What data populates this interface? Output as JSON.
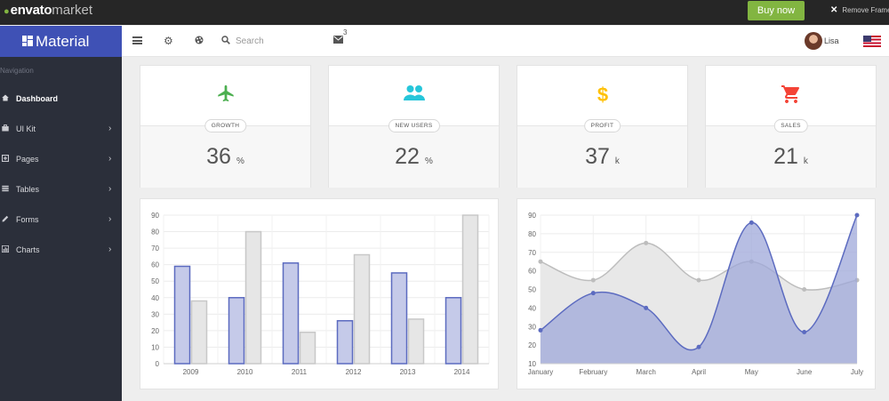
{
  "envato": {
    "logo_brand": "envato",
    "logo_market": "market",
    "buy_button": "Buy now",
    "remove_frame": "Remove Frame"
  },
  "brand": {
    "title": "Material"
  },
  "header": {
    "search_placeholder": "Search",
    "mail_count": "3",
    "user_name": "Lisa"
  },
  "sidebar": {
    "heading": "Navigation",
    "items": [
      {
        "label": "Dashboard",
        "icon": "home-icon",
        "has_children": false,
        "active": true
      },
      {
        "label": "UI Kit",
        "icon": "briefcase-icon",
        "has_children": true
      },
      {
        "label": "Pages",
        "icon": "pages-icon",
        "has_children": true
      },
      {
        "label": "Tables",
        "icon": "table-icon",
        "has_children": true
      },
      {
        "label": "Forms",
        "icon": "pencil-icon",
        "has_children": true
      },
      {
        "label": "Charts",
        "icon": "chart-icon",
        "has_children": true
      }
    ]
  },
  "stats": [
    {
      "label": "GROWTH",
      "value": "36",
      "unit": "%",
      "icon": "airplane-icon",
      "color": "#4caf50"
    },
    {
      "label": "NEW USERS",
      "value": "22",
      "unit": "%",
      "icon": "users-icon",
      "color": "#26c6da"
    },
    {
      "label": "PROFIT",
      "value": "37",
      "unit": "k",
      "icon": "dollar-icon",
      "color": "#ffc107"
    },
    {
      "label": "SALES",
      "value": "21",
      "unit": "k",
      "icon": "cart-icon",
      "color": "#f44336"
    }
  ],
  "chart_data": [
    {
      "type": "bar",
      "categories": [
        "2009",
        "2010",
        "2011",
        "2012",
        "2013",
        "2014"
      ],
      "series": [
        {
          "values": [
            59,
            40,
            61,
            26,
            55,
            40
          ],
          "color": "#5c6bc0",
          "fill": "#c5cae9"
        },
        {
          "values": [
            38,
            80,
            19,
            66,
            27,
            90
          ],
          "color": "#c8c8c8",
          "fill": "#e6e6e6"
        }
      ],
      "ylim": [
        0,
        90
      ],
      "yticks": [
        0,
        10,
        20,
        30,
        40,
        50,
        60,
        70,
        80,
        90
      ],
      "grid": true
    },
    {
      "type": "area",
      "categories": [
        "January",
        "February",
        "March",
        "April",
        "May",
        "June",
        "July"
      ],
      "series": [
        {
          "values": [
            65,
            55,
            75,
            55,
            65,
            50,
            55
          ],
          "color": "#bdbdbd",
          "fill": "#e8e8e8"
        },
        {
          "values": [
            28,
            48,
            40,
            19,
            86,
            27,
            90
          ],
          "color": "#5c6bc0",
          "fill": "#9fa8da"
        }
      ],
      "ylim": [
        10,
        90
      ],
      "yticks": [
        10,
        20,
        30,
        40,
        50,
        60,
        70,
        80,
        90
      ],
      "grid": true
    }
  ]
}
